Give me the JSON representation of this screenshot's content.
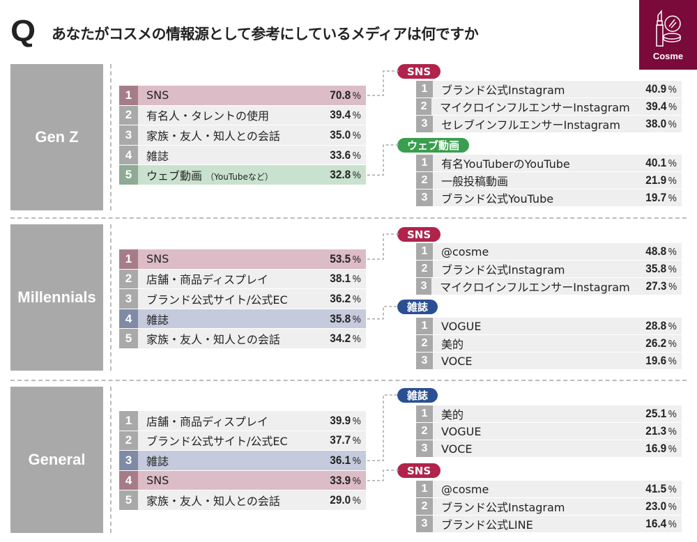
{
  "header": {
    "q": "Q",
    "title": "あなたがコスメの情報源として参考にしているメディアは何ですか",
    "brand": "Cosme",
    "brand_icon": "lipstick-mirror-icon"
  },
  "colors": {
    "sns": "#b0234a",
    "sns_row": "#dcbcc6",
    "sns_num": "#a67c88",
    "web": "#3a9e4f",
    "web_row": "#c9e2cf",
    "web_num": "#8faa95",
    "mag": "#2a4f92",
    "mag_row": "#c5cbdc",
    "mag_num": "#7f8aa6",
    "brand": "#7a0a3a"
  },
  "segments": [
    {
      "name": "Gen Z",
      "ranking": [
        {
          "rank": "1",
          "label": "SNS",
          "pct": "70.8",
          "hl": "sns"
        },
        {
          "rank": "2",
          "label": "有名人・タレントの使用",
          "pct": "39.4"
        },
        {
          "rank": "3",
          "label": "家族・友人・知人との会話",
          "pct": "35.0"
        },
        {
          "rank": "4",
          "label": "雑誌",
          "pct": "33.6"
        },
        {
          "rank": "5",
          "label": "ウェブ動画",
          "note": "（YouTubeなど）",
          "pct": "32.8",
          "hl": "web"
        }
      ],
      "details": [
        {
          "tag": "SNS",
          "type": "sns",
          "items": [
            {
              "rank": "1",
              "label": "ブランド公式Instagram",
              "pct": "40.9"
            },
            {
              "rank": "2",
              "label": "マイクロインフルエンサーInstagram",
              "pct": "39.4"
            },
            {
              "rank": "3",
              "label": "セレブインフルエンサーInstagram",
              "pct": "38.0"
            }
          ]
        },
        {
          "tag": "ウェブ動画",
          "type": "web",
          "items": [
            {
              "rank": "1",
              "label": "有名YouTuberのYouTube",
              "pct": "40.1"
            },
            {
              "rank": "2",
              "label": "一般投稿動画",
              "pct": "21.9"
            },
            {
              "rank": "3",
              "label": "ブランド公式YouTube",
              "pct": "19.7"
            }
          ]
        }
      ]
    },
    {
      "name": "Millennials",
      "ranking": [
        {
          "rank": "1",
          "label": "SNS",
          "pct": "53.5",
          "hl": "sns"
        },
        {
          "rank": "2",
          "label": "店舗・商品ディスプレイ",
          "pct": "38.1"
        },
        {
          "rank": "3",
          "label": "ブランド公式サイト/公式EC",
          "pct": "36.2"
        },
        {
          "rank": "4",
          "label": "雑誌",
          "pct": "35.8",
          "hl": "mag"
        },
        {
          "rank": "5",
          "label": "家族・友人・知人との会話",
          "pct": "34.2"
        }
      ],
      "details": [
        {
          "tag": "SNS",
          "type": "sns",
          "items": [
            {
              "rank": "1",
              "label": "@cosme",
              "pct": "48.8"
            },
            {
              "rank": "2",
              "label": "ブランド公式Instagram",
              "pct": "35.8"
            },
            {
              "rank": "3",
              "label": "マイクロインフルエンサーInstagram",
              "pct": "27.3"
            }
          ]
        },
        {
          "tag": "雑誌",
          "type": "mag",
          "items": [
            {
              "rank": "1",
              "label": "VOGUE",
              "pct": "28.8"
            },
            {
              "rank": "2",
              "label": "美的",
              "pct": "26.2"
            },
            {
              "rank": "3",
              "label": "VOCE",
              "pct": "19.6"
            }
          ]
        }
      ]
    },
    {
      "name": "General",
      "ranking": [
        {
          "rank": "1",
          "label": "店舗・商品ディスプレイ",
          "pct": "39.9"
        },
        {
          "rank": "2",
          "label": "ブランド公式サイト/公式EC",
          "pct": "37.7"
        },
        {
          "rank": "3",
          "label": "雑誌",
          "pct": "36.1",
          "hl": "mag"
        },
        {
          "rank": "4",
          "label": "SNS",
          "pct": "33.9",
          "hl": "sns"
        },
        {
          "rank": "5",
          "label": "家族・友人・知人との会話",
          "pct": "29.0"
        }
      ],
      "details": [
        {
          "tag": "雑誌",
          "type": "mag",
          "items": [
            {
              "rank": "1",
              "label": "美的",
              "pct": "25.1"
            },
            {
              "rank": "2",
              "label": "VOGUE",
              "pct": "21.3"
            },
            {
              "rank": "3",
              "label": "VOCE",
              "pct": "16.9"
            }
          ]
        },
        {
          "tag": "SNS",
          "type": "sns",
          "items": [
            {
              "rank": "1",
              "label": "@cosme",
              "pct": "41.5"
            },
            {
              "rank": "2",
              "label": "ブランド公式Instagram",
              "pct": "23.0"
            },
            {
              "rank": "3",
              "label": "ブランド公式LINE",
              "pct": "16.4"
            }
          ]
        }
      ]
    }
  ],
  "unit": "%"
}
